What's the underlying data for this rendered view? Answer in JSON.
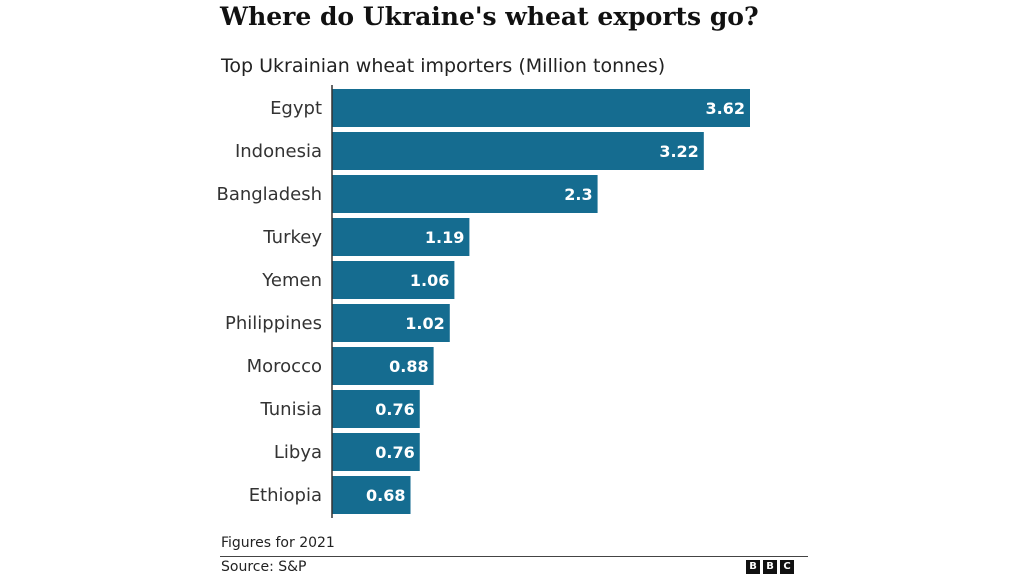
{
  "header": {
    "title": "Where do Ukraine's wheat exports go?",
    "subtitle": "Top Ukrainian wheat importers (Million tonnes)"
  },
  "footer": {
    "note": "Figures for 2021",
    "source": "Source: S&P",
    "logo_letters": [
      "B",
      "B",
      "C"
    ]
  },
  "colors": {
    "bar": "#156c90",
    "axis": "#333333",
    "value_label": "#ffffff"
  },
  "chart_data": {
    "type": "bar",
    "orientation": "horizontal",
    "title": "Where do Ukraine's wheat exports go?",
    "subtitle": "Top Ukrainian wheat importers (Million tonnes)",
    "categories": [
      "Egypt",
      "Indonesia",
      "Bangladesh",
      "Turkey",
      "Yemen",
      "Philippines",
      "Morocco",
      "Tunisia",
      "Libya",
      "Ethiopia"
    ],
    "values": [
      3.62,
      3.22,
      2.3,
      1.19,
      1.06,
      1.02,
      0.88,
      0.76,
      0.76,
      0.68
    ],
    "value_labels": [
      "3.62",
      "3.22",
      "2.3",
      "1.19",
      "1.06",
      "1.02",
      "0.88",
      "0.76",
      "0.76",
      "0.68"
    ],
    "xlim": [
      0,
      3.62
    ],
    "grid": false,
    "legend": "none"
  }
}
